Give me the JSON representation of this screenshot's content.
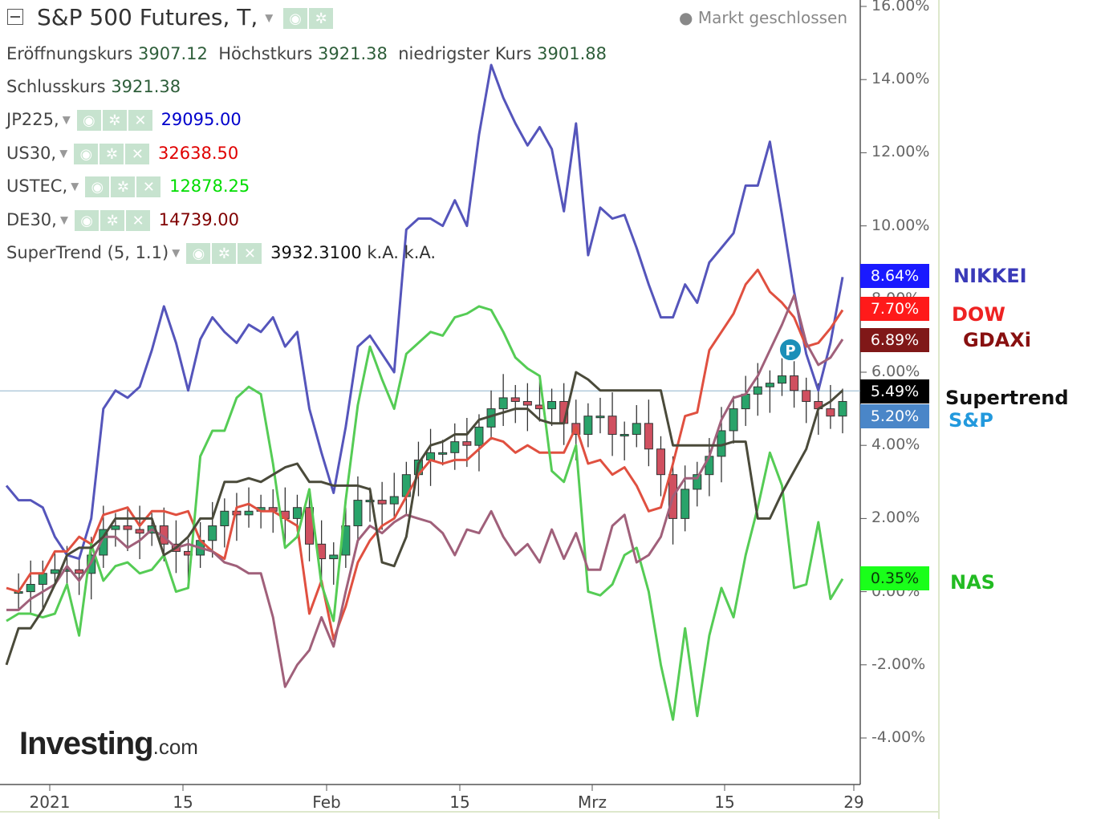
{
  "header": {
    "title": "S&P 500 Futures, T,",
    "status": "Markt geschlossen",
    "ohlc": [
      {
        "label": "Eröffnungskurs",
        "value": "3907.12"
      },
      {
        "label": "Höchstkurs",
        "value": "3921.38"
      },
      {
        "label": "niedrigster Kurs",
        "value": "3901.88"
      },
      {
        "label": "Schlusskurs",
        "value": "3921.38"
      }
    ]
  },
  "legend": [
    {
      "name": "JP225,",
      "value": "29095.00",
      "color": "#0000cc"
    },
    {
      "name": "US30,",
      "value": "32638.50",
      "color": "#e00000"
    },
    {
      "name": "USTEC,",
      "value": "12878.25",
      "color": "#00dd00"
    },
    {
      "name": "DE30,",
      "value": "14739.00",
      "color": "#800000"
    },
    {
      "name": "SuperTrend (5, 1.1)",
      "value": "3932.3100",
      "extra": "k.A.  k.A.",
      "color": "#111111"
    }
  ],
  "icons": [
    "eye-icon",
    "gear-icon",
    "close-icon"
  ],
  "logo": {
    "main": "Investing",
    "suffix": ".com"
  },
  "chart_data": {
    "type": "line",
    "y_axis": {
      "min": -5,
      "max": 16,
      "unit": "%",
      "ticks": [
        "16.00%",
        "14.00%",
        "12.00%",
        "10.00%",
        "8.00%",
        "6.00%",
        "4.00%",
        "2.00%",
        "0.00%",
        "-2.00%",
        "-4.00%"
      ]
    },
    "x_axis": {
      "labels": [
        "2021",
        "15",
        "Feb",
        "15",
        "Mrz",
        "15",
        "29"
      ]
    },
    "series": [
      {
        "name": "NIKKEI",
        "color": "#5555bb",
        "last": "8.64%",
        "tag_color": "#1a1aff",
        "label_color": "#3a3ab8",
        "values": [
          2.9,
          2.5,
          2.5,
          2.3,
          1.5,
          1.0,
          0.9,
          2.0,
          5.0,
          5.5,
          5.3,
          5.6,
          6.6,
          7.8,
          6.8,
          5.5,
          6.9,
          7.5,
          7.1,
          6.8,
          7.3,
          7.1,
          7.5,
          6.7,
          7.1,
          5.0,
          3.8,
          2.7,
          4.5,
          6.7,
          7.0,
          6.5,
          6.0,
          9.9,
          10.2,
          10.2,
          10.0,
          10.7,
          10.0,
          12.5,
          14.4,
          13.5,
          12.8,
          12.2,
          12.7,
          12.1,
          10.4,
          12.8,
          9.2,
          10.5,
          10.2,
          10.3,
          9.4,
          8.4,
          7.5,
          7.5,
          8.4,
          7.9,
          9.0,
          9.4,
          9.8,
          11.1,
          11.1,
          12.3,
          10.3,
          8.2,
          6.5,
          5.5,
          6.8,
          8.6
        ]
      },
      {
        "name": "DOW",
        "color": "#e05040",
        "last": "7.70%",
        "tag_color": "#ff1a1a",
        "label_color": "#ee2222",
        "values": [
          0.1,
          0.0,
          0.5,
          0.5,
          1.1,
          1.1,
          1.5,
          1.3,
          2.1,
          2.2,
          2.3,
          1.8,
          2.2,
          2.2,
          2.1,
          2.2,
          1.4,
          1.1,
          0.9,
          2.3,
          2.4,
          2.2,
          2.2,
          2.0,
          1.8,
          -0.6,
          0.3,
          -1.3,
          -0.4,
          0.8,
          1.4,
          1.8,
          2.0,
          2.6,
          3.2,
          3.6,
          3.5,
          3.6,
          3.6,
          3.9,
          4.2,
          4.1,
          3.8,
          4.0,
          3.8,
          3.8,
          3.8,
          4.5,
          3.5,
          3.6,
          3.2,
          3.4,
          2.9,
          2.2,
          2.3,
          3.5,
          4.8,
          4.9,
          6.6,
          7.1,
          7.6,
          8.4,
          8.8,
          8.2,
          7.9,
          7.5,
          6.7,
          6.8,
          7.2,
          7.7
        ]
      },
      {
        "name": "NAS",
        "color": "#55cc55",
        "last": "0.35%",
        "tag_color": "#1aff1a",
        "label_color": "#22bb22",
        "values": [
          -0.8,
          -0.6,
          -0.6,
          -0.7,
          -0.6,
          0.2,
          -1.2,
          1.3,
          0.3,
          0.7,
          0.8,
          0.5,
          0.6,
          1.0,
          0.0,
          0.1,
          3.7,
          4.4,
          4.4,
          5.3,
          5.6,
          5.4,
          3.5,
          1.2,
          1.5,
          2.8,
          0.2,
          -0.8,
          2.5,
          5.1,
          6.7,
          5.8,
          5.0,
          6.5,
          6.8,
          7.1,
          7.0,
          7.5,
          7.6,
          7.8,
          7.7,
          7.1,
          6.4,
          6.1,
          5.9,
          3.3,
          3.0,
          4.0,
          0.0,
          -0.1,
          0.2,
          1.0,
          1.2,
          0.0,
          -2.0,
          -3.5,
          -1.0,
          -3.4,
          -1.2,
          0.1,
          -0.7,
          1.0,
          2.3,
          3.8,
          2.9,
          0.1,
          0.2,
          1.9,
          -0.2,
          0.35
        ]
      },
      {
        "name": "GDAXi",
        "color": "#a0607a",
        "last": "6.89%",
        "tag_color": "#801818",
        "label_color": "#881010",
        "values": [
          -0.5,
          -0.5,
          -0.2,
          0.0,
          0.2,
          0.7,
          0.3,
          0.8,
          1.5,
          1.5,
          1.2,
          1.4,
          1.7,
          1.5,
          1.2,
          1.3,
          1.2,
          1.1,
          0.8,
          0.7,
          0.5,
          0.5,
          -0.7,
          -2.6,
          -2.0,
          -1.6,
          -0.7,
          -1.5,
          0.0,
          1.4,
          1.8,
          1.6,
          1.9,
          2.1,
          2.0,
          1.9,
          1.6,
          1.0,
          1.7,
          1.6,
          2.2,
          1.5,
          1.0,
          1.3,
          0.8,
          1.7,
          0.9,
          1.6,
          0.6,
          0.6,
          1.8,
          2.1,
          0.8,
          1.0,
          1.5,
          2.6,
          3.1,
          3.1,
          3.7,
          4.7,
          5.3,
          5.4,
          5.9,
          6.6,
          7.3,
          8.1,
          6.8,
          6.2,
          6.4,
          6.9
        ]
      },
      {
        "name": "Supertrend",
        "color": "#4a4a3a",
        "last": "5.49%",
        "tag_color": "#000000",
        "label_color": "#111111",
        "values": [
          -2.0,
          -1.0,
          -1.0,
          -0.5,
          0.2,
          1.0,
          1.2,
          1.2,
          1.5,
          2.0,
          2.0,
          2.0,
          2.0,
          1.0,
          1.2,
          1.5,
          2.0,
          2.0,
          3.0,
          3.0,
          3.1,
          3.0,
          3.2,
          3.4,
          3.5,
          3.0,
          3.0,
          2.9,
          2.9,
          2.9,
          2.8,
          0.8,
          0.7,
          1.5,
          3.5,
          4.0,
          4.1,
          4.3,
          4.3,
          4.7,
          4.8,
          4.9,
          5.0,
          5.0,
          4.7,
          4.6,
          4.6,
          6.0,
          5.8,
          5.5,
          5.5,
          5.5,
          5.5,
          5.5,
          5.5,
          4.0,
          4.0,
          4.0,
          4.0,
          4.0,
          4.1,
          4.1,
          2.0,
          2.0,
          2.7,
          3.3,
          3.9,
          5.0,
          5.2,
          5.5
        ]
      },
      {
        "name": "S&P",
        "color": "#3a8a5a",
        "last": "5.20%",
        "tag_color": "#4a86c8",
        "label_color": "#2299dd",
        "values": [
          0.0,
          0.0,
          0.2,
          0.5,
          0.6,
          0.6,
          0.5,
          1.0,
          1.7,
          1.8,
          1.7,
          1.6,
          1.8,
          1.3,
          1.1,
          1.0,
          1.4,
          1.8,
          2.2,
          2.1,
          2.2,
          2.3,
          2.2,
          2.0,
          2.3,
          1.3,
          0.9,
          1.0,
          1.8,
          2.5,
          2.5,
          2.4,
          2.6,
          3.2,
          3.6,
          3.8,
          3.8,
          4.1,
          4.0,
          4.5,
          5.0,
          5.3,
          5.2,
          5.1,
          5.0,
          5.2,
          4.6,
          4.3,
          4.8,
          4.8,
          4.3,
          4.3,
          4.6,
          3.9,
          3.2,
          2.0,
          2.8,
          3.2,
          3.7,
          4.4,
          5.0,
          5.4,
          5.6,
          5.7,
          5.9,
          5.5,
          5.2,
          5.0,
          4.8,
          5.2
        ]
      }
    ]
  }
}
